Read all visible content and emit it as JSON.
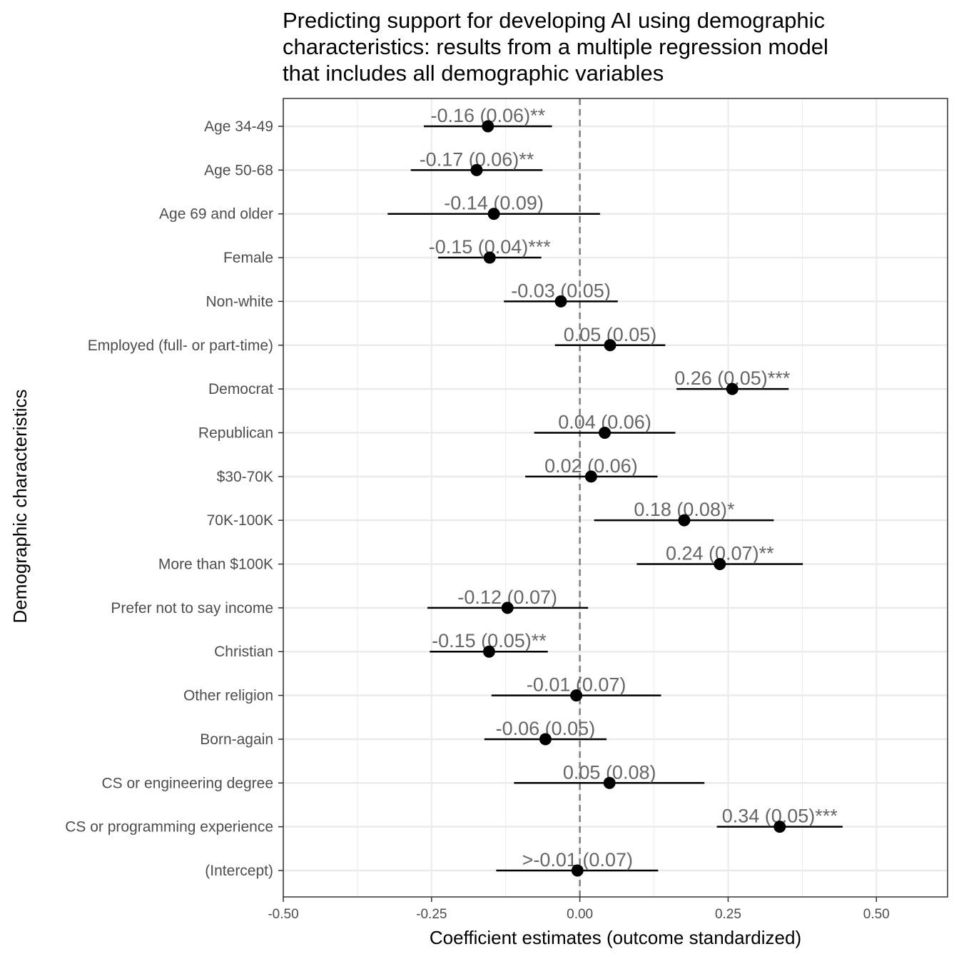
{
  "chart_data": {
    "type": "scatter",
    "subtype": "coefficient-plot",
    "title_lines": [
      "Predicting support for developing AI using demographic",
      "characteristics: results from a multiple regression model",
      "that includes all demographic variables"
    ],
    "xlabel": "Coefficient estimates (outcome standardized)",
    "ylabel": "Demographic characteristics",
    "xlim": [
      -0.5,
      0.62
    ],
    "xticks": [
      -0.5,
      -0.25,
      0.0,
      0.25,
      0.5
    ],
    "xtick_labels": [
      "-0.50",
      "-0.25",
      "0.00",
      "0.25",
      "0.50"
    ],
    "grid": true,
    "reference_line": 0,
    "colors": {
      "point": "#000000",
      "label": "#666666",
      "grid": "#ebebeb",
      "refline": "#7f7f7f"
    },
    "rows": [
      {
        "name": "Age 34-49",
        "estimate": -0.155,
        "lower": -0.263,
        "upper": -0.047,
        "label": "-0.16 (0.06)**"
      },
      {
        "name": "Age 50-68",
        "estimate": -0.174,
        "lower": -0.285,
        "upper": -0.063,
        "label": "-0.17 (0.06)**"
      },
      {
        "name": "Age 69 and older",
        "estimate": -0.145,
        "lower": -0.324,
        "upper": 0.034,
        "label": "-0.14 (0.09)"
      },
      {
        "name": "Female",
        "estimate": -0.152,
        "lower": -0.239,
        "upper": -0.065,
        "label": "-0.15 (0.04)***"
      },
      {
        "name": "Non-white",
        "estimate": -0.032,
        "lower": -0.128,
        "upper": 0.064,
        "label": "-0.03 (0.05)"
      },
      {
        "name": "Employed (full- or part-time)",
        "estimate": 0.051,
        "lower": -0.042,
        "upper": 0.144,
        "label": "0.05 (0.05)"
      },
      {
        "name": "Democrat",
        "estimate": 0.257,
        "lower": 0.163,
        "upper": 0.352,
        "label": "0.26 (0.05)***"
      },
      {
        "name": "Republican",
        "estimate": 0.042,
        "lower": -0.077,
        "upper": 0.161,
        "label": "0.04 (0.06)"
      },
      {
        "name": "$30-70K",
        "estimate": 0.019,
        "lower": -0.092,
        "upper": 0.131,
        "label": "0.02 (0.06)"
      },
      {
        "name": "70K-100K",
        "estimate": 0.176,
        "lower": 0.024,
        "upper": 0.327,
        "label": "0.18 (0.08)*"
      },
      {
        "name": "More than $100K",
        "estimate": 0.236,
        "lower": 0.096,
        "upper": 0.376,
        "label": "0.24 (0.07)**"
      },
      {
        "name": "Prefer not to say income",
        "estimate": -0.122,
        "lower": -0.257,
        "upper": 0.014,
        "label": "-0.12 (0.07)"
      },
      {
        "name": "Christian",
        "estimate": -0.153,
        "lower": -0.253,
        "upper": -0.054,
        "label": "-0.15 (0.05)**"
      },
      {
        "name": "Other religion",
        "estimate": -0.006,
        "lower": -0.149,
        "upper": 0.137,
        "label": "-0.01 (0.07)"
      },
      {
        "name": "Born-again",
        "estimate": -0.058,
        "lower": -0.161,
        "upper": 0.045,
        "label": "-0.06 (0.05)"
      },
      {
        "name": "CS or engineering degree",
        "estimate": 0.05,
        "lower": -0.111,
        "upper": 0.21,
        "label": "0.05 (0.08)"
      },
      {
        "name": "CS or programming experience",
        "estimate": 0.337,
        "lower": 0.231,
        "upper": 0.443,
        "label": "0.34 (0.05)***"
      },
      {
        "name": "(Intercept)",
        "estimate": -0.004,
        "lower": -0.141,
        "upper": 0.132,
        "label": ">-0.01 (0.07)"
      }
    ]
  }
}
